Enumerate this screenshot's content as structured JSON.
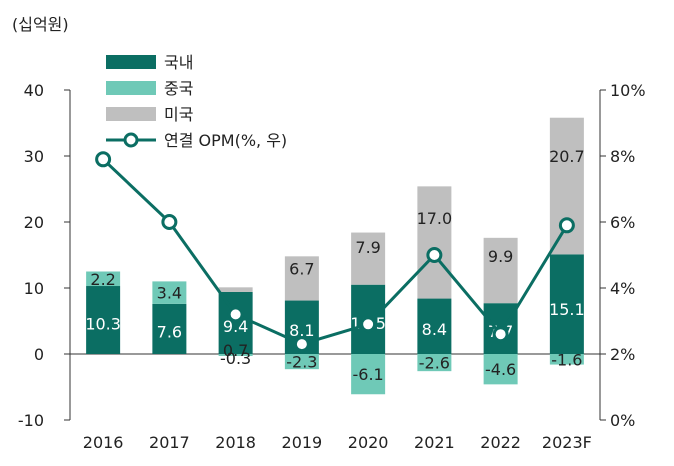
{
  "chart_data": {
    "type": "bar",
    "stacked": true,
    "unit_left": "(십억원)",
    "categories": [
      "2016",
      "2017",
      "2018",
      "2019",
      "2020",
      "2021",
      "2022",
      "2023F"
    ],
    "ylim_left": [
      -10,
      40
    ],
    "yticks_left": [
      "40",
      "30",
      "20",
      "10",
      "0",
      "-10"
    ],
    "ylim_right": [
      0,
      10
    ],
    "yticks_right": [
      "10%",
      "8%",
      "6%",
      "4%",
      "2%",
      "0%"
    ],
    "legend_position": "top-left",
    "colors": {
      "domestic": "#0b6e63",
      "china": "#6fc9b7",
      "usa": "#bfbfbf",
      "line": "#0b6e63"
    },
    "series": [
      {
        "name": "국내",
        "kind": "bar",
        "values": [
          10.3,
          7.6,
          9.4,
          8.1,
          10.5,
          8.4,
          7.7,
          15.1
        ],
        "labels": [
          "10.3",
          "7.6",
          "9.4",
          "8.1",
          "10.5",
          "8.4",
          "7.7",
          "15.1"
        ]
      },
      {
        "name": "중국",
        "kind": "bar",
        "values": [
          2.2,
          3.4,
          -0.3,
          -2.3,
          -6.1,
          -2.6,
          -4.6,
          -1.6
        ],
        "labels": [
          "2.2",
          "3.4",
          "-0.3",
          "-2.3",
          "-6.1",
          "-2.6",
          "-4.6",
          "-1.6"
        ]
      },
      {
        "name": "미국",
        "kind": "bar",
        "values": [
          0,
          0,
          0.7,
          6.7,
          7.9,
          17.0,
          9.9,
          20.7
        ],
        "labels": [
          "",
          "",
          "0.7",
          "6.7",
          "7.9",
          "17.0",
          "9.9",
          "20.7"
        ]
      },
      {
        "name": "연결 OPM(%, 우)",
        "kind": "line",
        "axis": "right",
        "values": [
          7.9,
          6.0,
          3.2,
          2.3,
          2.9,
          5.0,
          2.6,
          5.9
        ]
      }
    ]
  }
}
